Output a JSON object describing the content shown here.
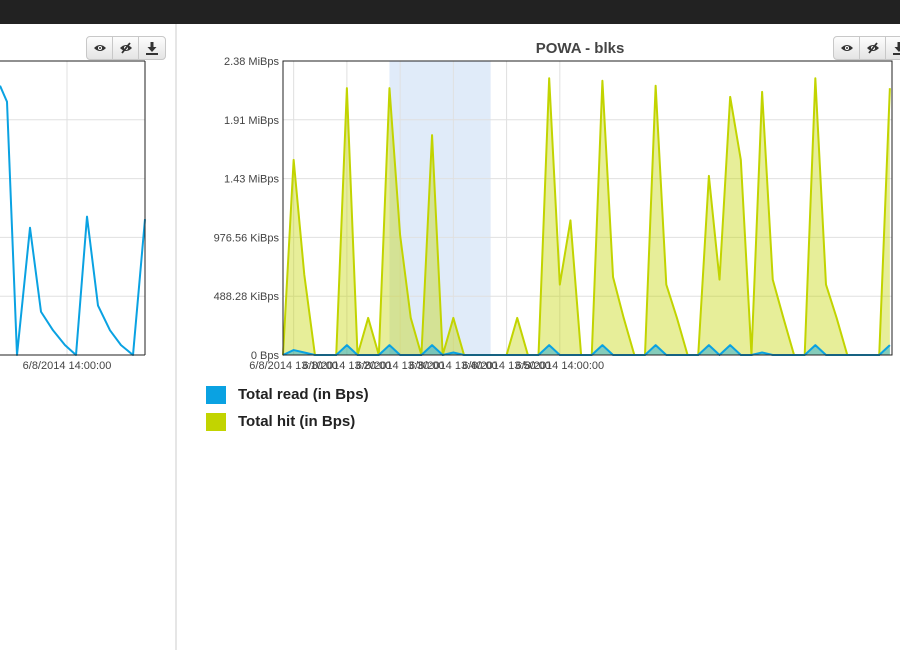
{
  "buttons": [
    {
      "icon": "eye-icon"
    },
    {
      "icon": "eye-slash-icon"
    },
    {
      "icon": "download-icon"
    }
  ],
  "chart_data": [
    {
      "type": "line",
      "title": "",
      "x_labels": [
        "6/8/2014 14:00:00"
      ],
      "series": [
        {
          "name": "Total read (in Bps)",
          "color": "#0aa2e2",
          "values": [
            2.18,
            2.05,
            0,
            1.03,
            0.35,
            0.2,
            0.08,
            0,
            1.12,
            0.4,
            0.2,
            0.08,
            0,
            1.1
          ]
        }
      ],
      "visible_range": "right portion only; chart cut off at left edge"
    },
    {
      "type": "area",
      "title": "POWA - blks",
      "y_ticks": [
        "0 Bps",
        "488.28 KiBps",
        "976.56 KiBps",
        "1.43 MiBps",
        "1.91 MiBps",
        "2.38 MiBps"
      ],
      "ylim_mib": [
        0,
        2.38
      ],
      "x_labels": [
        "6/8/2014 13:10:00",
        "6/8/2014 13:20:00",
        "6/8/2014 13:30:00",
        "6/8/2014 13:40:00",
        "6/8/2014 13:50:00",
        "6/8/2014 14:00:00"
      ],
      "highlight_band": [
        "13:28",
        "13:47"
      ],
      "grid": true,
      "legend_placement": "below-left",
      "series": [
        {
          "name": "Total hit (in Bps)",
          "color": "#c2d400",
          "t_min": [
            0,
            2,
            4,
            6,
            8,
            10,
            12,
            14,
            16,
            18,
            20,
            22,
            24,
            26,
            28,
            30,
            32,
            34,
            36,
            38,
            40,
            42,
            44,
            46,
            48,
            50,
            52,
            54,
            56,
            58,
            60,
            62,
            64,
            66,
            68,
            70,
            72,
            74,
            76,
            78,
            80,
            82,
            84,
            86,
            88,
            90,
            92,
            94,
            96,
            98,
            100,
            102,
            104,
            106,
            108,
            110,
            112,
            114
          ],
          "values_mib": [
            0,
            1.58,
            0.65,
            0,
            0,
            0,
            2.16,
            0,
            0.3,
            0,
            2.16,
            0.97,
            0.3,
            0,
            1.78,
            0,
            0.3,
            0,
            0,
            0,
            0,
            0,
            0.3,
            0,
            0,
            2.24,
            0.57,
            1.09,
            0,
            0,
            2.22,
            0.63,
            0.3,
            0,
            0,
            2.18,
            0.57,
            0.3,
            0,
            0,
            1.45,
            0.61,
            2.09,
            1.58,
            0,
            2.13,
            0.61,
            0.3,
            0,
            0,
            2.24,
            0.57,
            0.3,
            0,
            0,
            0,
            0,
            2.16
          ]
        },
        {
          "name": "Total read (in Bps)",
          "color": "#0aa2e2",
          "t_min": [
            0,
            2,
            4,
            6,
            8,
            10,
            12,
            14,
            16,
            18,
            20,
            22,
            24,
            26,
            28,
            30,
            32,
            34,
            36,
            38,
            40,
            42,
            44,
            46,
            48,
            50,
            52,
            54,
            56,
            58,
            60,
            62,
            64,
            66,
            68,
            70,
            72,
            74,
            76,
            78,
            80,
            82,
            84,
            86,
            88,
            90,
            92,
            94,
            96,
            98,
            100,
            102,
            104,
            106,
            108,
            110,
            112,
            114
          ],
          "values_mib": [
            0,
            0.04,
            0.02,
            0,
            0,
            0,
            0.08,
            0,
            0,
            0,
            0.08,
            0,
            0,
            0,
            0.08,
            0,
            0.02,
            0,
            0,
            0,
            0,
            0,
            0,
            0,
            0,
            0.08,
            0,
            0,
            0,
            0,
            0.08,
            0,
            0,
            0,
            0,
            0.08,
            0,
            0,
            0,
            0,
            0.08,
            0,
            0.08,
            0,
            0,
            0.02,
            0,
            0,
            0,
            0,
            0.08,
            0,
            0,
            0,
            0,
            0,
            0,
            0.08
          ]
        }
      ]
    }
  ]
}
